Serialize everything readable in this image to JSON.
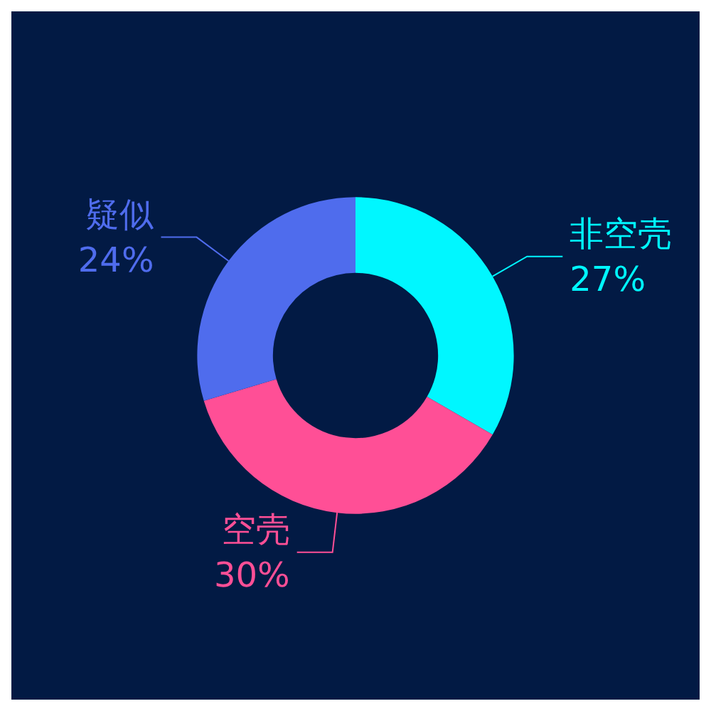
{
  "chart_data": {
    "type": "donut",
    "categories": [
      "非空壳",
      "空壳",
      "疑似"
    ],
    "values": [
      27,
      30,
      24
    ],
    "colors": [
      "#00f7ff",
      "#ff4f96",
      "#4f6ced"
    ],
    "value_labels": [
      "27%",
      "30%",
      "24%"
    ],
    "legend": false
  }
}
